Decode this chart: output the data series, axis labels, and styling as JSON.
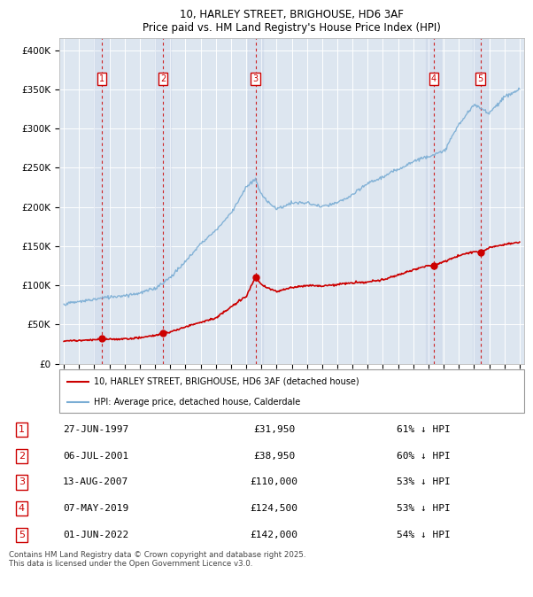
{
  "title_line1": "10, HARLEY STREET, BRIGHOUSE, HD6 3AF",
  "title_line2": "Price paid vs. HM Land Registry's House Price Index (HPI)",
  "ylabel_ticks": [
    "£0",
    "£50K",
    "£100K",
    "£150K",
    "£200K",
    "£250K",
    "£300K",
    "£350K",
    "£400K"
  ],
  "ytick_vals": [
    0,
    50000,
    100000,
    150000,
    200000,
    250000,
    300000,
    350000,
    400000
  ],
  "ylim": [
    0,
    415000
  ],
  "xlim_start": 1994.7,
  "xlim_end": 2025.3,
  "sale_dates_year": [
    1997.49,
    2001.52,
    2007.62,
    2019.35,
    2022.42
  ],
  "sale_prices": [
    31950,
    38950,
    110000,
    124500,
    142000
  ],
  "sale_labels": [
    "1",
    "2",
    "3",
    "4",
    "5"
  ],
  "sale_table": [
    {
      "num": "1",
      "date": "27-JUN-1997",
      "price": "£31,950",
      "hpi": "61% ↓ HPI"
    },
    {
      "num": "2",
      "date": "06-JUL-2001",
      "price": "£38,950",
      "hpi": "60% ↓ HPI"
    },
    {
      "num": "3",
      "date": "13-AUG-2007",
      "price": "£110,000",
      "hpi": "53% ↓ HPI"
    },
    {
      "num": "4",
      "date": "07-MAY-2019",
      "price": "£124,500",
      "hpi": "53% ↓ HPI"
    },
    {
      "num": "5",
      "date": "01-JUN-2022",
      "price": "£142,000",
      "hpi": "54% ↓ HPI"
    }
  ],
  "legend_red_label": "10, HARLEY STREET, BRIGHOUSE, HD6 3AF (detached house)",
  "legend_blue_label": "HPI: Average price, detached house, Calderdale",
  "footer_text": "Contains HM Land Registry data © Crown copyright and database right 2025.\nThis data is licensed under the Open Government Licence v3.0.",
  "red_color": "#cc0000",
  "blue_color": "#7aadd4",
  "dashed_vline_color": "#cc0000",
  "box_color": "#cc0000",
  "bg_plot_color": "#dde6f0",
  "grid_color": "#ffffff",
  "hpi_keypoints_x": [
    1995.0,
    1996.0,
    1997.0,
    1998.0,
    1999.0,
    2000.0,
    2001.0,
    2002.0,
    2003.0,
    2004.0,
    2005.0,
    2006.0,
    2007.0,
    2007.62,
    2008.0,
    2009.0,
    2010.0,
    2011.0,
    2012.0,
    2013.0,
    2014.0,
    2015.0,
    2016.0,
    2017.0,
    2018.0,
    2019.0,
    2020.0,
    2021.0,
    2022.0,
    2023.0,
    2024.0,
    2025.0
  ],
  "hpi_keypoints_y": [
    76000,
    79000,
    82000,
    85000,
    87000,
    90000,
    96000,
    110000,
    130000,
    153000,
    170000,
    192000,
    225000,
    235000,
    215000,
    197000,
    205000,
    205000,
    200000,
    205000,
    215000,
    230000,
    238000,
    248000,
    258000,
    265000,
    270000,
    305000,
    330000,
    320000,
    340000,
    350000
  ],
  "red_keypoints_x": [
    1995.0,
    1996.0,
    1997.0,
    1997.49,
    1998.0,
    1999.0,
    2000.0,
    2001.0,
    2001.52,
    2002.0,
    2003.0,
    2004.0,
    2005.0,
    2006.0,
    2007.0,
    2007.62,
    2008.0,
    2009.0,
    2010.0,
    2011.0,
    2012.0,
    2013.0,
    2014.0,
    2015.0,
    2016.0,
    2017.0,
    2018.0,
    2019.0,
    2019.35,
    2020.0,
    2021.0,
    2022.0,
    2022.42,
    2023.0,
    2024.0,
    2025.0
  ],
  "red_keypoints_y": [
    29000,
    29500,
    30000,
    31950,
    31000,
    31500,
    33000,
    36000,
    38950,
    40000,
    47000,
    53000,
    58000,
    72000,
    86000,
    110000,
    100000,
    92000,
    97000,
    100000,
    99000,
    101000,
    103000,
    104000,
    107000,
    113000,
    120000,
    125000,
    124500,
    130000,
    138000,
    143000,
    142000,
    148000,
    152000,
    155000
  ]
}
